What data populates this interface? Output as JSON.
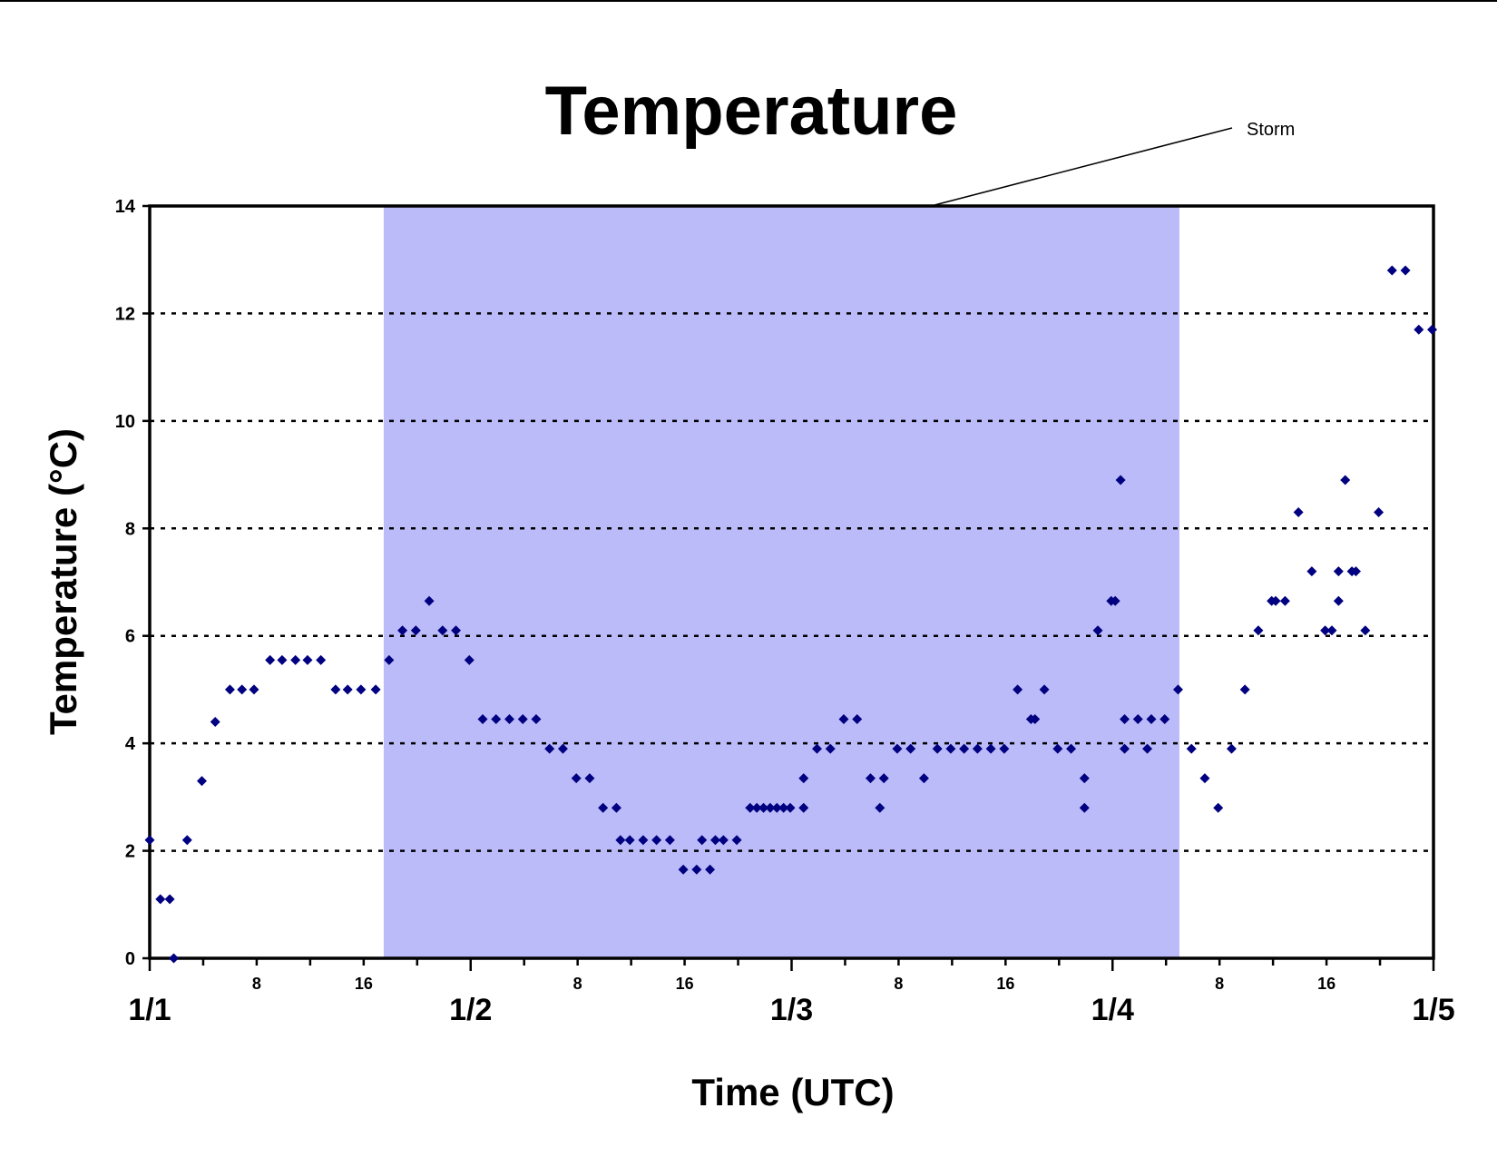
{
  "colors": {
    "storm_band": "#bbbbfa",
    "marker": "#000080",
    "grid": "#000000",
    "axis": "#000000"
  },
  "chart_data": {
    "type": "scatter",
    "title": "Temperature",
    "xlabel": "Time (UTC)",
    "ylabel": "Temperature (°C)",
    "ylim": [
      0,
      14
    ],
    "yticks": [
      0,
      2,
      4,
      6,
      8,
      10,
      12,
      14
    ],
    "grid": "horizontal dotted",
    "x_unit": "hours from 1/1 00 UTC",
    "xlim": [
      0,
      96
    ],
    "day_labels": [
      {
        "x": 0,
        "label": "1/1"
      },
      {
        "x": 24,
        "label": "1/2"
      },
      {
        "x": 48,
        "label": "1/3"
      },
      {
        "x": 72,
        "label": "1/4"
      },
      {
        "x": 96,
        "label": "1/5"
      }
    ],
    "hour_labels": [
      {
        "x": 8,
        "label": "8"
      },
      {
        "x": 16,
        "label": "16"
      },
      {
        "x": 32,
        "label": "8"
      },
      {
        "x": 40,
        "label": "16"
      },
      {
        "x": 56,
        "label": "8"
      },
      {
        "x": 64,
        "label": "16"
      },
      {
        "x": 80,
        "label": "8"
      },
      {
        "x": 88,
        "label": "16"
      }
    ],
    "shaded_region": {
      "x_start": 17.5,
      "x_end": 77,
      "label": "Storm"
    },
    "annotation": {
      "text": "Storm"
    },
    "series": [
      {
        "marker": "diamond",
        "points": [
          [
            0,
            2.2
          ],
          [
            0.8,
            1.1
          ],
          [
            1.5,
            1.1
          ],
          [
            1.8,
            0.0
          ],
          [
            2.8,
            2.2
          ],
          [
            3.9,
            3.3
          ],
          [
            4.9,
            4.4
          ],
          [
            6.0,
            5.0
          ],
          [
            6.9,
            5.0
          ],
          [
            7.8,
            5.0
          ],
          [
            9.0,
            5.55
          ],
          [
            9.9,
            5.55
          ],
          [
            10.9,
            5.55
          ],
          [
            11.8,
            5.55
          ],
          [
            12.8,
            5.55
          ],
          [
            13.9,
            5.0
          ],
          [
            14.8,
            5.0
          ],
          [
            15.8,
            5.0
          ],
          [
            16.9,
            5.0
          ],
          [
            17.9,
            5.55
          ],
          [
            18.9,
            6.1
          ],
          [
            19.9,
            6.1
          ],
          [
            20.9,
            6.65
          ],
          [
            21.9,
            6.1
          ],
          [
            22.9,
            6.1
          ],
          [
            23.9,
            5.55
          ],
          [
            24.9,
            4.45
          ],
          [
            25.9,
            4.45
          ],
          [
            26.9,
            4.45
          ],
          [
            27.9,
            4.45
          ],
          [
            28.9,
            4.45
          ],
          [
            29.9,
            3.9
          ],
          [
            30.9,
            3.9
          ],
          [
            31.9,
            3.35
          ],
          [
            32.9,
            3.35
          ],
          [
            33.9,
            2.8
          ],
          [
            34.9,
            2.8
          ],
          [
            35.2,
            2.2
          ],
          [
            35.9,
            2.2
          ],
          [
            36.9,
            2.2
          ],
          [
            37.9,
            2.2
          ],
          [
            38.9,
            2.2
          ],
          [
            39.9,
            1.65
          ],
          [
            40.9,
            1.65
          ],
          [
            41.3,
            2.2
          ],
          [
            41.9,
            1.65
          ],
          [
            42.3,
            2.2
          ],
          [
            42.9,
            2.2
          ],
          [
            43.9,
            2.2
          ],
          [
            44.9,
            2.8
          ],
          [
            45.4,
            2.8
          ],
          [
            45.9,
            2.8
          ],
          [
            46.4,
            2.8
          ],
          [
            46.9,
            2.8
          ],
          [
            47.4,
            2.8
          ],
          [
            47.9,
            2.8
          ],
          [
            48.9,
            2.8
          ],
          [
            48.9,
            3.35
          ],
          [
            49.9,
            3.9
          ],
          [
            50.9,
            3.9
          ],
          [
            51.9,
            4.45
          ],
          [
            52.9,
            4.45
          ],
          [
            53.9,
            3.35
          ],
          [
            54.6,
            2.8
          ],
          [
            54.9,
            3.35
          ],
          [
            55.9,
            3.9
          ],
          [
            56.9,
            3.9
          ],
          [
            57.9,
            3.35
          ],
          [
            58.9,
            3.9
          ],
          [
            59.9,
            3.9
          ],
          [
            60.9,
            3.9
          ],
          [
            61.9,
            3.9
          ],
          [
            62.9,
            3.9
          ],
          [
            63.9,
            3.9
          ],
          [
            64.9,
            5.0
          ],
          [
            65.9,
            4.45
          ],
          [
            66.2,
            4.45
          ],
          [
            66.9,
            5.0
          ],
          [
            67.9,
            3.9
          ],
          [
            68.9,
            3.9
          ],
          [
            69.9,
            3.35
          ],
          [
            69.9,
            2.8
          ],
          [
            70.9,
            6.1
          ],
          [
            71.9,
            6.65
          ],
          [
            72.2,
            6.65
          ],
          [
            72.6,
            8.9
          ],
          [
            72.9,
            3.9
          ],
          [
            72.9,
            4.45
          ],
          [
            73.9,
            4.45
          ],
          [
            74.6,
            3.9
          ],
          [
            74.9,
            4.45
          ],
          [
            75.9,
            4.45
          ],
          [
            76.9,
            5.0
          ],
          [
            77.9,
            3.9
          ],
          [
            78.9,
            3.35
          ],
          [
            79.9,
            2.8
          ],
          [
            80.9,
            3.9
          ],
          [
            81.9,
            5.0
          ],
          [
            82.9,
            6.1
          ],
          [
            83.9,
            6.65
          ],
          [
            84.2,
            6.65
          ],
          [
            84.9,
            6.65
          ],
          [
            85.9,
            8.3
          ],
          [
            86.9,
            7.2
          ],
          [
            87.9,
            6.1
          ],
          [
            88.4,
            6.1
          ],
          [
            88.9,
            7.2
          ],
          [
            88.9,
            6.65
          ],
          [
            89.4,
            8.9
          ],
          [
            89.9,
            7.2
          ],
          [
            90.2,
            7.2
          ],
          [
            90.9,
            6.1
          ],
          [
            91.9,
            8.3
          ],
          [
            92.9,
            12.8
          ],
          [
            93.9,
            12.8
          ],
          [
            94.9,
            11.7
          ],
          [
            95.9,
            11.7
          ]
        ]
      }
    ]
  }
}
